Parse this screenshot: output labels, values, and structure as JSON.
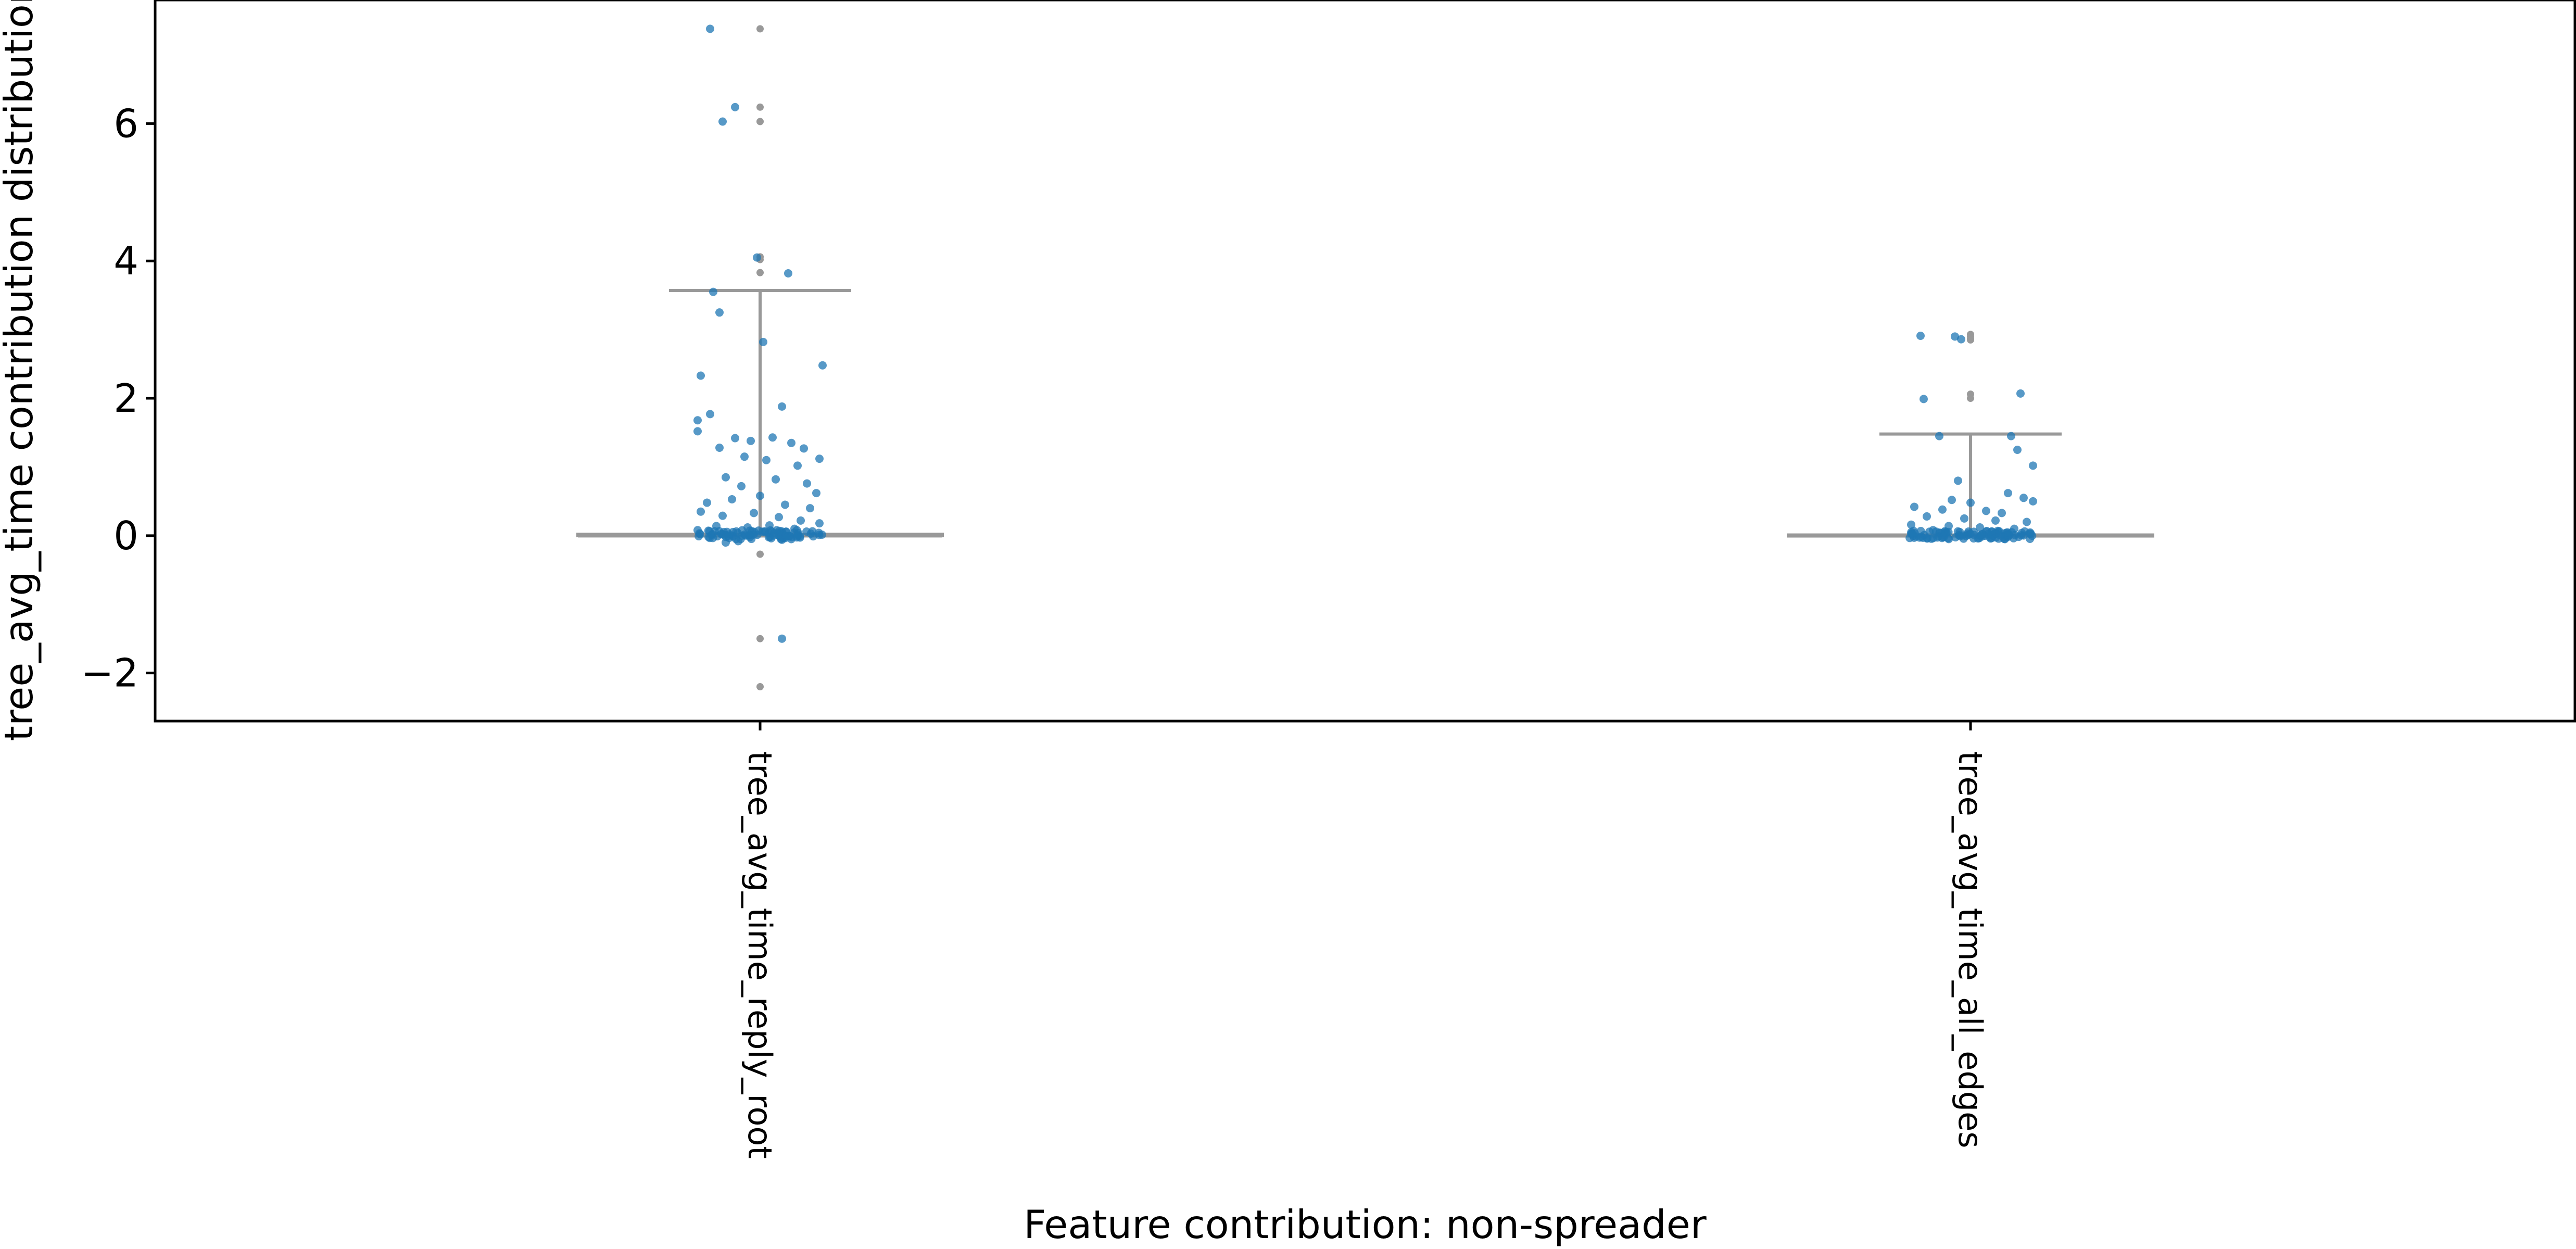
{
  "chart_data": {
    "type": "scatter",
    "subtype": "strip-plot-with-box",
    "xlabel": "Feature contribution: non-spreader",
    "ylabel": "tree_avg_time contribution distribution",
    "categories": [
      "tree_avg_time_reply_root",
      "tree_avg_time_all_edges"
    ],
    "ylim": [
      -2.7,
      7.8
    ],
    "yticks": [
      -2,
      0,
      2,
      4,
      6
    ],
    "ytick_labels": [
      "−2",
      "0",
      "2",
      "4",
      "6"
    ],
    "grid": false,
    "legend": "none",
    "colors": {
      "points": "#1f77b4",
      "box": "#999999",
      "fliers": "#999999"
    },
    "boxes": [
      {
        "category": "tree_avg_time_reply_root",
        "q1": 0.0,
        "median": 0.0,
        "q3": 0.02,
        "whisker_low": 0.0,
        "whisker_high": 3.57,
        "fliers": [
          7.38,
          6.24,
          6.03,
          4.06,
          4.02,
          3.83,
          -0.27,
          -1.5,
          -2.2
        ]
      },
      {
        "category": "tree_avg_time_all_edges",
        "q1": 0.0,
        "median": 0.0,
        "q3": 0.01,
        "whisker_low": 0.0,
        "whisker_high": 1.48,
        "fliers": [
          2.93,
          2.9,
          2.87,
          2.85,
          2.06,
          2.0
        ]
      }
    ],
    "series": [
      {
        "category": "tree_avg_time_reply_root",
        "points": [
          {
            "x": -0.16,
            "y": 7.38
          },
          {
            "x": -0.08,
            "y": 6.24
          },
          {
            "x": -0.12,
            "y": 6.03
          },
          {
            "x": -0.01,
            "y": 4.05
          },
          {
            "x": 0.09,
            "y": 3.82
          },
          {
            "x": -0.15,
            "y": 3.55
          },
          {
            "x": -0.13,
            "y": 3.25
          },
          {
            "x": -0.19,
            "y": 2.33
          },
          {
            "x": 0.01,
            "y": 2.82
          },
          {
            "x": 0.2,
            "y": 2.48
          },
          {
            "x": 0.07,
            "y": 1.88
          },
          {
            "x": -0.16,
            "y": 1.77
          },
          {
            "x": -0.2,
            "y": 1.68
          },
          {
            "x": -0.2,
            "y": 1.52
          },
          {
            "x": -0.08,
            "y": 1.42
          },
          {
            "x": -0.13,
            "y": 1.28
          },
          {
            "x": -0.03,
            "y": 1.38
          },
          {
            "x": 0.04,
            "y": 1.43
          },
          {
            "x": 0.1,
            "y": 1.35
          },
          {
            "x": 0.14,
            "y": 1.27
          },
          {
            "x": 0.19,
            "y": 1.12
          },
          {
            "x": -0.05,
            "y": 1.15
          },
          {
            "x": 0.02,
            "y": 1.1
          },
          {
            "x": 0.12,
            "y": 1.02
          },
          {
            "x": -0.11,
            "y": 0.85
          },
          {
            "x": -0.06,
            "y": 0.72
          },
          {
            "x": 0.05,
            "y": 0.82
          },
          {
            "x": 0.15,
            "y": 0.76
          },
          {
            "x": 0.18,
            "y": 0.62
          },
          {
            "x": -0.17,
            "y": 0.48
          },
          {
            "x": -0.09,
            "y": 0.53
          },
          {
            "x": 0.0,
            "y": 0.58
          },
          {
            "x": 0.08,
            "y": 0.45
          },
          {
            "x": 0.16,
            "y": 0.4
          },
          {
            "x": -0.19,
            "y": 0.35
          },
          {
            "x": -0.12,
            "y": 0.29
          },
          {
            "x": -0.02,
            "y": 0.33
          },
          {
            "x": 0.06,
            "y": 0.27
          },
          {
            "x": 0.13,
            "y": 0.22
          },
          {
            "x": 0.19,
            "y": 0.18
          },
          {
            "x": -0.14,
            "y": 0.14
          },
          {
            "x": -0.04,
            "y": 0.12
          },
          {
            "x": 0.03,
            "y": 0.15
          },
          {
            "x": 0.11,
            "y": 0.1
          },
          {
            "x": -0.2,
            "y": 0.08
          },
          {
            "x": -0.07,
            "y": -0.08
          },
          {
            "x": 0.1,
            "y": -0.05
          },
          {
            "x": -0.11,
            "y": -0.1
          },
          {
            "x": 0.07,
            "y": -0.06
          },
          {
            "x": 0.07,
            "y": -1.5
          }
        ],
        "dense_band": {
          "y_min": -0.05,
          "y_max": 0.08,
          "count": 90
        }
      },
      {
        "category": "tree_avg_time_all_edges",
        "points": [
          {
            "x": -0.16,
            "y": 2.91
          },
          {
            "x": -0.05,
            "y": 2.9
          },
          {
            "x": -0.03,
            "y": 2.86
          },
          {
            "x": 0.16,
            "y": 2.07
          },
          {
            "x": -0.15,
            "y": 1.99
          },
          {
            "x": -0.1,
            "y": 1.45
          },
          {
            "x": 0.13,
            "y": 1.45
          },
          {
            "x": 0.15,
            "y": 1.25
          },
          {
            "x": 0.2,
            "y": 1.02
          },
          {
            "x": -0.04,
            "y": 0.8
          },
          {
            "x": 0.12,
            "y": 0.62
          },
          {
            "x": 0.17,
            "y": 0.55
          },
          {
            "x": -0.06,
            "y": 0.52
          },
          {
            "x": 0.0,
            "y": 0.48
          },
          {
            "x": 0.2,
            "y": 0.5
          },
          {
            "x": -0.18,
            "y": 0.42
          },
          {
            "x": -0.09,
            "y": 0.38
          },
          {
            "x": 0.05,
            "y": 0.36
          },
          {
            "x": 0.1,
            "y": 0.33
          },
          {
            "x": -0.14,
            "y": 0.28
          },
          {
            "x": -0.02,
            "y": 0.25
          },
          {
            "x": 0.08,
            "y": 0.22
          },
          {
            "x": 0.18,
            "y": 0.2
          },
          {
            "x": -0.19,
            "y": 0.16
          },
          {
            "x": -0.07,
            "y": 0.14
          },
          {
            "x": 0.03,
            "y": 0.12
          },
          {
            "x": 0.14,
            "y": 0.1
          },
          {
            "x": -0.12,
            "y": 0.08
          },
          {
            "x": 0.01,
            "y": -0.04
          },
          {
            "x": 0.11,
            "y": -0.05
          }
        ],
        "dense_band": {
          "y_min": -0.05,
          "y_max": 0.07,
          "count": 100
        }
      }
    ]
  }
}
